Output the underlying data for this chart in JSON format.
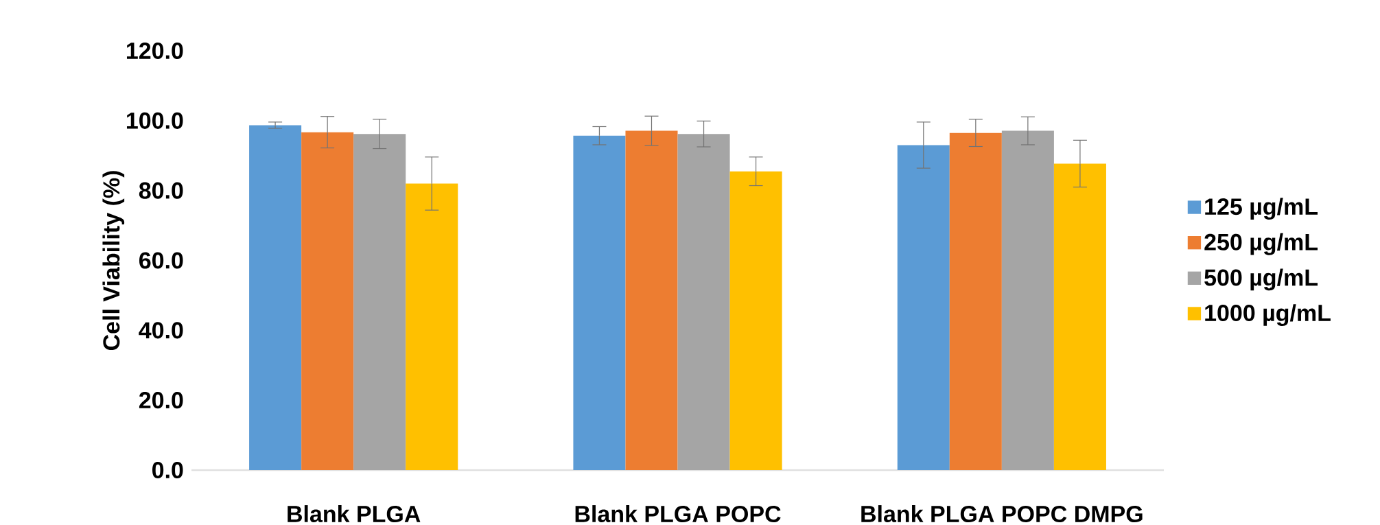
{
  "chart_data": {
    "type": "bar",
    "ylabel": "Cell Viability (%)",
    "categories": [
      "Blank PLGA",
      "Blank PLGA POPC",
      "Blank PLGA POPC DMPG"
    ],
    "series": [
      {
        "name": "125 µg/mL",
        "color": "#5b9bd5",
        "values": [
          98.7,
          95.7,
          93.0
        ],
        "errors": [
          0.9,
          2.6,
          6.6
        ]
      },
      {
        "name": "250 µg/mL",
        "color": "#ed7d31",
        "values": [
          96.7,
          97.1,
          96.5
        ],
        "errors": [
          4.5,
          4.2,
          3.9
        ]
      },
      {
        "name": "500 µg/mL",
        "color": "#a5a5a5",
        "values": [
          96.2,
          96.2,
          97.1
        ],
        "errors": [
          4.2,
          3.7,
          4.0
        ]
      },
      {
        "name": "1000 µg/mL",
        "color": "#ffc000",
        "values": [
          82.0,
          85.5,
          87.7
        ],
        "errors": [
          7.6,
          4.1,
          6.7
        ]
      }
    ],
    "ylim": [
      0,
      120
    ],
    "yticks": [
      {
        "value": 0,
        "label": "0.0"
      },
      {
        "value": 20,
        "label": "20.0"
      },
      {
        "value": 40,
        "label": "40.0"
      },
      {
        "value": 60,
        "label": "60.0"
      },
      {
        "value": 80,
        "label": "80.0"
      },
      {
        "value": 100,
        "label": "100.0"
      },
      {
        "value": 120,
        "label": "120.0"
      }
    ],
    "legend": "right"
  }
}
